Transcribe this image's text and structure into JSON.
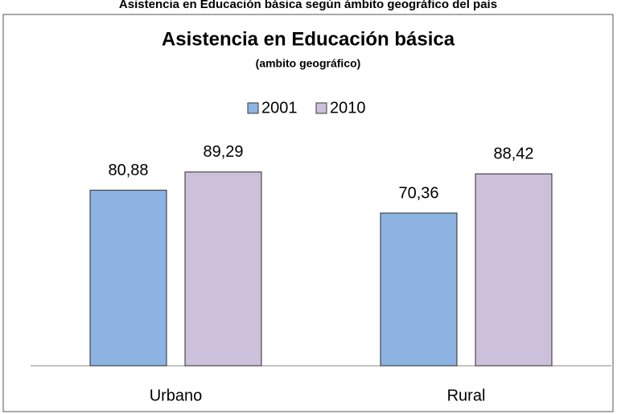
{
  "header": {
    "title": "Asistencia en Educación básica según ámbito geográfico del país"
  },
  "chart_data": {
    "type": "bar",
    "title": "Asistencia en Educación básica",
    "subtitle": "(ambito geográfico)",
    "categories": [
      "Urbano",
      "Rural"
    ],
    "series": [
      {
        "name": "2001",
        "color": "#8db3e2",
        "values": [
          80.88,
          70.36
        ],
        "value_labels": [
          "80,88",
          "70,36"
        ]
      },
      {
        "name": "2010",
        "color": "#ccc0da",
        "values": [
          89.29,
          88.42
        ],
        "value_labels": [
          "89,29",
          "88,42"
        ]
      }
    ],
    "ylim": [
      0,
      100
    ],
    "legend": "top"
  }
}
